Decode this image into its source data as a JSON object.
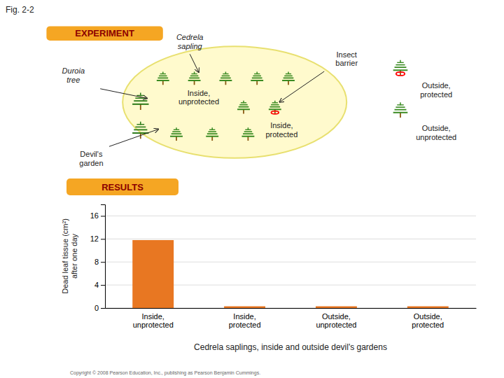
{
  "chart_data": {
    "type": "bar",
    "categories": [
      "Inside,\nunprotected",
      "Inside,\nprotected",
      "Outside,\nunprotected",
      "Outside,\nprotected"
    ],
    "values": [
      11.8,
      0.3,
      0.3,
      0.3
    ],
    "color": "#E87722",
    "ylabel": "Dead leaf tissue (cm²)\nafter one day",
    "xlabel": "Cedrela saplings, inside and outside devil's gardens",
    "ylim": [
      0,
      18
    ],
    "yticks": [
      0,
      4,
      8,
      12,
      16
    ],
    "grid": true,
    "annotations": [
      "Fig. 2-2",
      "EXPERIMENT",
      "Cedrela\nsapling",
      "Duroia\ntree",
      "Insect\nbarrier",
      "Inside,\nunprotected",
      "Inside,\nprotected",
      "Devil's\ngarden",
      "Outside,\nprotected",
      "Outside,\nunprotected",
      "RESULTS",
      "Copyright © 2008 Pearson Education, Inc., publishing as Pearson Benjamin Cummings."
    ]
  }
}
